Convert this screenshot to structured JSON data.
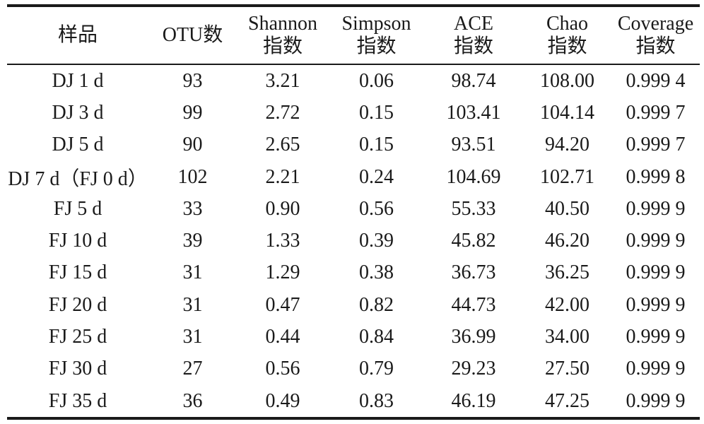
{
  "table": {
    "headers": [
      {
        "line1": "样品",
        "line2": ""
      },
      {
        "line1": "OTU数",
        "line2": ""
      },
      {
        "line1": "Shannon",
        "line2": "指数"
      },
      {
        "line1": "Simpson",
        "line2": "指数"
      },
      {
        "line1": "ACE",
        "line2": "指数"
      },
      {
        "line1": "Chao",
        "line2": "指数"
      },
      {
        "line1": "Coverage",
        "line2": "指数"
      }
    ],
    "rows": [
      [
        "DJ 1 d",
        "93",
        "3.21",
        "0.06",
        "98.74",
        "108.00",
        "0.999 4"
      ],
      [
        "DJ 3 d",
        "99",
        "2.72",
        "0.15",
        "103.41",
        "104.14",
        "0.999 7"
      ],
      [
        "DJ 5 d",
        "90",
        "2.65",
        "0.15",
        "93.51",
        "94.20",
        "0.999 7"
      ],
      [
        "DJ 7 d（FJ 0 d）",
        "102",
        "2.21",
        "0.24",
        "104.69",
        "102.71",
        "0.999 8"
      ],
      [
        "FJ 5 d",
        "33",
        "0.90",
        "0.56",
        "55.33",
        "40.50",
        "0.999 9"
      ],
      [
        "FJ 10 d",
        "39",
        "1.33",
        "0.39",
        "45.82",
        "46.20",
        "0.999 9"
      ],
      [
        "FJ 15 d",
        "31",
        "1.29",
        "0.38",
        "36.73",
        "36.25",
        "0.999 9"
      ],
      [
        "FJ 20 d",
        "31",
        "0.47",
        "0.82",
        "44.73",
        "42.00",
        "0.999 9"
      ],
      [
        "FJ 25 d",
        "31",
        "0.44",
        "0.84",
        "36.99",
        "34.00",
        "0.999 9"
      ],
      [
        "FJ 30 d",
        "27",
        "0.56",
        "0.79",
        "29.23",
        "27.50",
        "0.999 9"
      ],
      [
        "FJ 35 d",
        "36",
        "0.49",
        "0.83",
        "46.19",
        "47.25",
        "0.999 9"
      ]
    ]
  }
}
